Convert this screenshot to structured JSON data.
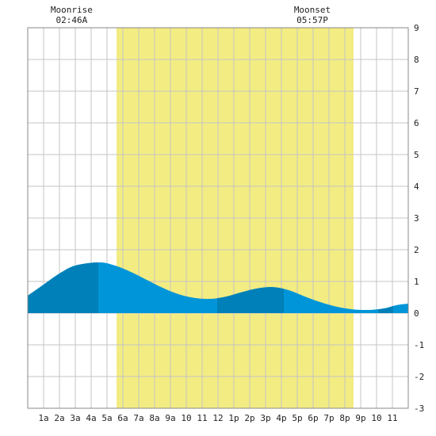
{
  "chart_data": {
    "type": "area",
    "title": "",
    "xlabel": "",
    "ylabel": "",
    "x_tick_labels": [
      "1a",
      "2a",
      "3a",
      "4a",
      "5a",
      "6a",
      "7a",
      "8a",
      "9a",
      "10",
      "11",
      "12",
      "1p",
      "2p",
      "3p",
      "4p",
      "5p",
      "6p",
      "7p",
      "8p",
      "9p",
      "10",
      "11"
    ],
    "xlim": [
      0,
      24
    ],
    "y_ticks": [
      9,
      8,
      7,
      6,
      5,
      4,
      3,
      2,
      1,
      0,
      -1,
      -2,
      -3
    ],
    "ylim": [
      -3,
      9
    ],
    "grid": true,
    "daylight": {
      "start_hour": 5.6,
      "end_hour": 20.55,
      "color": "#f3ec82"
    },
    "moon": [
      {
        "label": "Moonrise",
        "time": "02:46A",
        "hour": 2.77
      },
      {
        "label": "Moonset",
        "time": "05:57P",
        "hour": 17.95
      }
    ],
    "series": [
      {
        "x": [
          0,
          1,
          2,
          3,
          4.5,
          5.5,
          6.5,
          7.5,
          8.5,
          9.5,
          10.5,
          11.5,
          12.5,
          13.5,
          14.5,
          15.5,
          16.5,
          17.5,
          18.5,
          19.5,
          20.5,
          21.5,
          22.5,
          23.25,
          24
        ],
        "y": [
          0.55,
          0.9,
          1.25,
          1.5,
          1.6,
          1.5,
          1.3,
          1.05,
          0.8,
          0.6,
          0.48,
          0.45,
          0.52,
          0.66,
          0.78,
          0.82,
          0.72,
          0.52,
          0.34,
          0.2,
          0.12,
          0.1,
          0.15,
          0.25,
          0.3
        ]
      }
    ],
    "tide_colors": {
      "light": "#0095d9",
      "dark": "#0080b8"
    },
    "dark_bands": [
      [
        0,
        4.45
      ],
      [
        11.95,
        16.15
      ],
      [
        22.1,
        23.05
      ]
    ]
  }
}
